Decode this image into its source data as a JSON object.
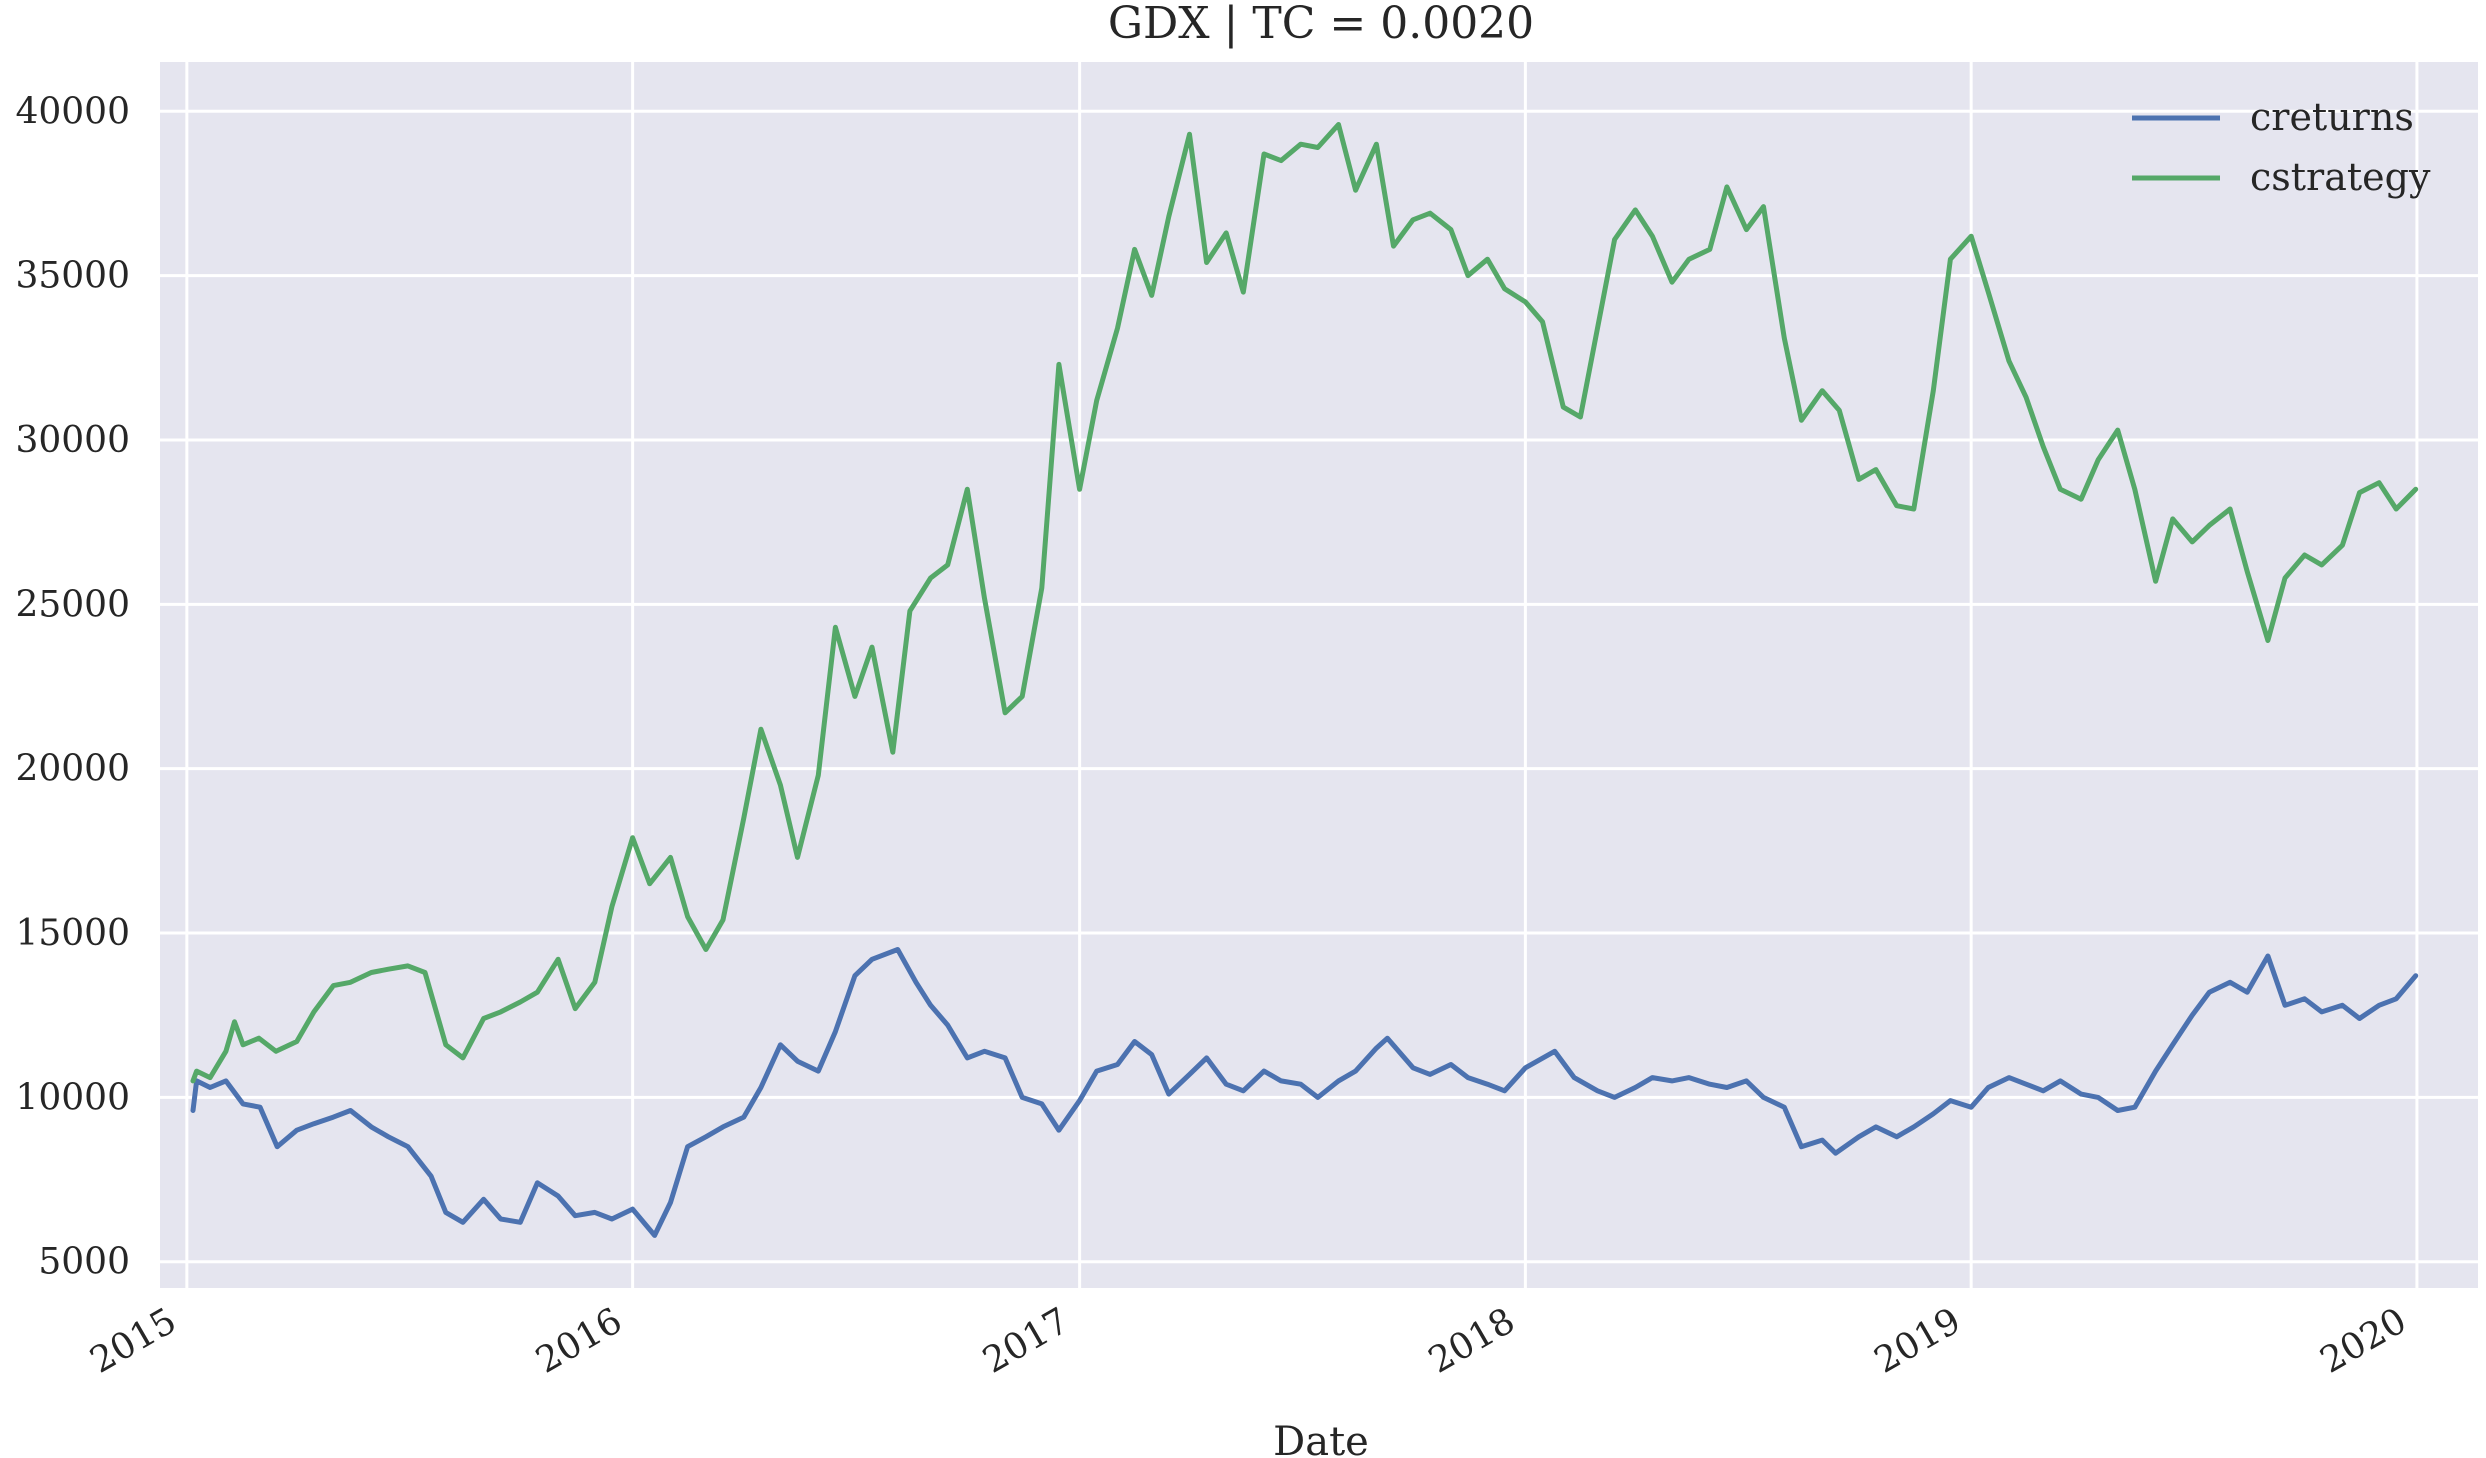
{
  "chart_data": {
    "type": "line",
    "title": "GDX | TC = 0.0020",
    "xlabel": "Date",
    "ylabel": "",
    "x_axis": {
      "kind": "date",
      "range": [
        "2014-12-10",
        "2020-02-20"
      ],
      "ticks": [
        "2015-01-01",
        "2016-01-01",
        "2017-01-01",
        "2018-01-01",
        "2019-01-01",
        "2020-01-01"
      ],
      "tick_labels": [
        "2015",
        "2016",
        "2017",
        "2018",
        "2019",
        "2020"
      ]
    },
    "y_axis": {
      "range": [
        4200,
        41500
      ],
      "ticks": [
        5000,
        10000,
        15000,
        20000,
        25000,
        30000,
        35000,
        40000
      ],
      "tick_labels": [
        "5000",
        "10000",
        "15000",
        "20000",
        "25000",
        "30000",
        "35000",
        "40000"
      ]
    },
    "grid": true,
    "legend_position": "top-right",
    "series": [
      {
        "name": "creturns",
        "color": "#4c72b0",
        "points": [
          [
            "2015-01-06",
            9600
          ],
          [
            "2015-01-09",
            10500
          ],
          [
            "2015-01-20",
            10300
          ],
          [
            "2015-02-02",
            10500
          ],
          [
            "2015-02-16",
            9800
          ],
          [
            "2015-03-02",
            9700
          ],
          [
            "2015-03-16",
            8500
          ],
          [
            "2015-04-01",
            9000
          ],
          [
            "2015-04-15",
            9200
          ],
          [
            "2015-05-01",
            9400
          ],
          [
            "2015-05-15",
            9600
          ],
          [
            "2015-06-01",
            9100
          ],
          [
            "2015-06-15",
            8800
          ],
          [
            "2015-07-01",
            8500
          ],
          [
            "2015-07-20",
            7600
          ],
          [
            "2015-08-01",
            6500
          ],
          [
            "2015-08-15",
            6200
          ],
          [
            "2015-09-01",
            6900
          ],
          [
            "2015-09-15",
            6300
          ],
          [
            "2015-10-01",
            6200
          ],
          [
            "2015-10-15",
            7400
          ],
          [
            "2015-11-01",
            7000
          ],
          [
            "2015-11-15",
            6400
          ],
          [
            "2015-12-01",
            6500
          ],
          [
            "2015-12-15",
            6300
          ],
          [
            "2016-01-01",
            6600
          ],
          [
            "2016-01-19",
            5800
          ],
          [
            "2016-02-01",
            6800
          ],
          [
            "2016-02-15",
            8500
          ],
          [
            "2016-03-01",
            8800
          ],
          [
            "2016-03-15",
            9100
          ],
          [
            "2016-04-01",
            9400
          ],
          [
            "2016-04-15",
            10300
          ],
          [
            "2016-05-01",
            11600
          ],
          [
            "2016-05-15",
            11100
          ],
          [
            "2016-06-01",
            10800
          ],
          [
            "2016-06-15",
            12000
          ],
          [
            "2016-07-01",
            13700
          ],
          [
            "2016-07-15",
            14200
          ],
          [
            "2016-08-05",
            14500
          ],
          [
            "2016-08-20",
            13500
          ],
          [
            "2016-09-01",
            12800
          ],
          [
            "2016-09-15",
            12200
          ],
          [
            "2016-10-01",
            11200
          ],
          [
            "2016-10-15",
            11400
          ],
          [
            "2016-11-01",
            11200
          ],
          [
            "2016-11-15",
            10000
          ],
          [
            "2016-12-01",
            9800
          ],
          [
            "2016-12-15",
            9000
          ],
          [
            "2017-01-01",
            9900
          ],
          [
            "2017-01-15",
            10800
          ],
          [
            "2017-02-01",
            11000
          ],
          [
            "2017-02-15",
            11700
          ],
          [
            "2017-03-01",
            11300
          ],
          [
            "2017-03-15",
            10100
          ],
          [
            "2017-04-01",
            10700
          ],
          [
            "2017-04-15",
            11200
          ],
          [
            "2017-05-01",
            10400
          ],
          [
            "2017-05-15",
            10200
          ],
          [
            "2017-06-01",
            10800
          ],
          [
            "2017-06-15",
            10500
          ],
          [
            "2017-07-01",
            10400
          ],
          [
            "2017-07-15",
            10000
          ],
          [
            "2017-08-01",
            10500
          ],
          [
            "2017-08-15",
            10800
          ],
          [
            "2017-09-01",
            11500
          ],
          [
            "2017-09-10",
            11800
          ],
          [
            "2017-10-01",
            10900
          ],
          [
            "2017-10-15",
            10700
          ],
          [
            "2017-11-01",
            11000
          ],
          [
            "2017-11-15",
            10600
          ],
          [
            "2017-12-01",
            10400
          ],
          [
            "2017-12-15",
            10200
          ],
          [
            "2018-01-01",
            10900
          ],
          [
            "2018-01-25",
            11400
          ],
          [
            "2018-02-10",
            10600
          ],
          [
            "2018-03-01",
            10200
          ],
          [
            "2018-03-15",
            10000
          ],
          [
            "2018-04-01",
            10300
          ],
          [
            "2018-04-15",
            10600
          ],
          [
            "2018-05-01",
            10500
          ],
          [
            "2018-05-15",
            10600
          ],
          [
            "2018-06-01",
            10400
          ],
          [
            "2018-06-15",
            10300
          ],
          [
            "2018-07-01",
            10500
          ],
          [
            "2018-07-15",
            10000
          ],
          [
            "2018-08-01",
            9700
          ],
          [
            "2018-08-15",
            8500
          ],
          [
            "2018-09-01",
            8700
          ],
          [
            "2018-09-12",
            8300
          ],
          [
            "2018-10-01",
            8800
          ],
          [
            "2018-10-15",
            9100
          ],
          [
            "2018-11-01",
            8800
          ],
          [
            "2018-11-15",
            9100
          ],
          [
            "2018-12-01",
            9500
          ],
          [
            "2018-12-15",
            9900
          ],
          [
            "2019-01-01",
            9700
          ],
          [
            "2019-01-15",
            10300
          ],
          [
            "2019-02-01",
            10600
          ],
          [
            "2019-02-15",
            10400
          ],
          [
            "2019-03-01",
            10200
          ],
          [
            "2019-03-15",
            10500
          ],
          [
            "2019-04-01",
            10100
          ],
          [
            "2019-04-15",
            10000
          ],
          [
            "2019-05-01",
            9600
          ],
          [
            "2019-05-15",
            9700
          ],
          [
            "2019-06-01",
            10800
          ],
          [
            "2019-06-15",
            11600
          ],
          [
            "2019-07-01",
            12500
          ],
          [
            "2019-07-15",
            13200
          ],
          [
            "2019-08-01",
            13500
          ],
          [
            "2019-08-15",
            13200
          ],
          [
            "2019-09-01",
            14300
          ],
          [
            "2019-09-15",
            12800
          ],
          [
            "2019-10-01",
            13000
          ],
          [
            "2019-10-15",
            12600
          ],
          [
            "2019-11-01",
            12800
          ],
          [
            "2019-11-15",
            12400
          ],
          [
            "2019-12-01",
            12800
          ],
          [
            "2019-12-15",
            13000
          ],
          [
            "2019-12-31",
            13700
          ]
        ]
      },
      {
        "name": "cstrategy",
        "color": "#55a868",
        "points": [
          [
            "2015-01-06",
            10500
          ],
          [
            "2015-01-09",
            10800
          ],
          [
            "2015-01-20",
            10600
          ],
          [
            "2015-02-02",
            11400
          ],
          [
            "2015-02-09",
            12300
          ],
          [
            "2015-02-16",
            11600
          ],
          [
            "2015-03-01",
            11800
          ],
          [
            "2015-03-15",
            11400
          ],
          [
            "2015-04-01",
            11700
          ],
          [
            "2015-04-15",
            12600
          ],
          [
            "2015-05-01",
            13400
          ],
          [
            "2015-05-15",
            13500
          ],
          [
            "2015-06-01",
            13800
          ],
          [
            "2015-06-15",
            13900
          ],
          [
            "2015-07-01",
            14000
          ],
          [
            "2015-07-15",
            13800
          ],
          [
            "2015-08-01",
            11600
          ],
          [
            "2015-08-15",
            11200
          ],
          [
            "2015-09-01",
            12400
          ],
          [
            "2015-09-15",
            12600
          ],
          [
            "2015-10-01",
            12900
          ],
          [
            "2015-10-15",
            13200
          ],
          [
            "2015-11-01",
            14200
          ],
          [
            "2015-11-15",
            12700
          ],
          [
            "2015-12-01",
            13500
          ],
          [
            "2015-12-15",
            15800
          ],
          [
            "2016-01-01",
            17900
          ],
          [
            "2016-01-15",
            16500
          ],
          [
            "2016-02-01",
            17300
          ],
          [
            "2016-02-15",
            15500
          ],
          [
            "2016-03-01",
            14500
          ],
          [
            "2016-03-15",
            15400
          ],
          [
            "2016-04-01",
            18500
          ],
          [
            "2016-04-15",
            21200
          ],
          [
            "2016-05-01",
            19500
          ],
          [
            "2016-05-15",
            17300
          ],
          [
            "2016-06-01",
            19800
          ],
          [
            "2016-06-15",
            24300
          ],
          [
            "2016-07-01",
            22200
          ],
          [
            "2016-07-15",
            23700
          ],
          [
            "2016-08-01",
            20500
          ],
          [
            "2016-08-15",
            24800
          ],
          [
            "2016-09-01",
            25800
          ],
          [
            "2016-09-15",
            26200
          ],
          [
            "2016-10-01",
            28500
          ],
          [
            "2016-10-15",
            25200
          ],
          [
            "2016-11-01",
            21700
          ],
          [
            "2016-11-15",
            22200
          ],
          [
            "2016-12-01",
            25500
          ],
          [
            "2016-12-15",
            32300
          ],
          [
            "2017-01-01",
            28500
          ],
          [
            "2017-01-15",
            31200
          ],
          [
            "2017-02-01",
            33400
          ],
          [
            "2017-02-15",
            35800
          ],
          [
            "2017-03-01",
            34400
          ],
          [
            "2017-03-15",
            36800
          ],
          [
            "2017-04-01",
            39300
          ],
          [
            "2017-04-15",
            35400
          ],
          [
            "2017-05-01",
            36300
          ],
          [
            "2017-05-15",
            34500
          ],
          [
            "2017-06-01",
            38700
          ],
          [
            "2017-06-15",
            38500
          ],
          [
            "2017-07-01",
            39000
          ],
          [
            "2017-07-15",
            38900
          ],
          [
            "2017-08-01",
            39600
          ],
          [
            "2017-08-15",
            37600
          ],
          [
            "2017-09-01",
            39000
          ],
          [
            "2017-09-15",
            35900
          ],
          [
            "2017-10-01",
            36700
          ],
          [
            "2017-10-15",
            36900
          ],
          [
            "2017-11-01",
            36400
          ],
          [
            "2017-11-15",
            35000
          ],
          [
            "2017-12-01",
            35500
          ],
          [
            "2017-12-15",
            34600
          ],
          [
            "2018-01-01",
            34200
          ],
          [
            "2018-01-15",
            33600
          ],
          [
            "2018-02-01",
            31000
          ],
          [
            "2018-02-15",
            30700
          ],
          [
            "2018-03-01",
            33400
          ],
          [
            "2018-03-15",
            36100
          ],
          [
            "2018-04-01",
            37000
          ],
          [
            "2018-04-15",
            36200
          ],
          [
            "2018-05-01",
            34800
          ],
          [
            "2018-05-15",
            35500
          ],
          [
            "2018-06-01",
            35800
          ],
          [
            "2018-06-15",
            37700
          ],
          [
            "2018-07-01",
            36400
          ],
          [
            "2018-07-15",
            37100
          ],
          [
            "2018-08-01",
            33100
          ],
          [
            "2018-08-15",
            30600
          ],
          [
            "2018-09-01",
            31500
          ],
          [
            "2018-09-15",
            30900
          ],
          [
            "2018-10-01",
            28800
          ],
          [
            "2018-10-15",
            29100
          ],
          [
            "2018-11-01",
            28000
          ],
          [
            "2018-11-15",
            27900
          ],
          [
            "2018-12-01",
            31500
          ],
          [
            "2018-12-15",
            35500
          ],
          [
            "2019-01-01",
            36200
          ],
          [
            "2019-01-15",
            34500
          ],
          [
            "2019-02-01",
            32400
          ],
          [
            "2019-02-15",
            31300
          ],
          [
            "2019-03-01",
            29800
          ],
          [
            "2019-03-15",
            28500
          ],
          [
            "2019-04-01",
            28200
          ],
          [
            "2019-04-15",
            29400
          ],
          [
            "2019-05-01",
            30300
          ],
          [
            "2019-05-15",
            28500
          ],
          [
            "2019-06-01",
            25700
          ],
          [
            "2019-06-15",
            27600
          ],
          [
            "2019-07-01",
            26900
          ],
          [
            "2019-07-15",
            27400
          ],
          [
            "2019-08-01",
            27900
          ],
          [
            "2019-08-15",
            26000
          ],
          [
            "2019-09-01",
            23900
          ],
          [
            "2019-09-15",
            25800
          ],
          [
            "2019-10-01",
            26500
          ],
          [
            "2019-10-15",
            26200
          ],
          [
            "2019-11-01",
            26800
          ],
          [
            "2019-11-15",
            28400
          ],
          [
            "2019-12-01",
            28700
          ],
          [
            "2019-12-15",
            27900
          ],
          [
            "2019-12-31",
            28500
          ]
        ]
      }
    ]
  }
}
